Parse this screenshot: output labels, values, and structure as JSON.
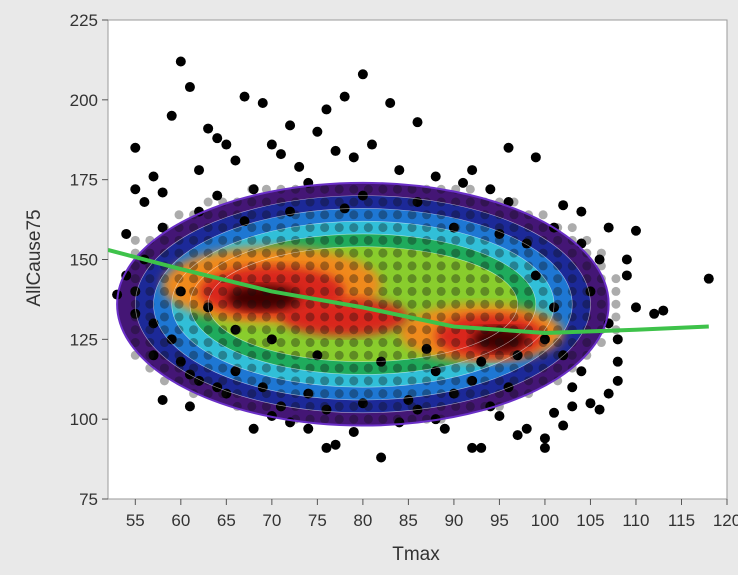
{
  "chart_data": {
    "type": "scatter",
    "title": "",
    "xlabel": "Tmax",
    "ylabel": "AllCause75",
    "xlim": [
      52,
      120
    ],
    "ylim": [
      75,
      225
    ],
    "x_ticks": [
      55,
      60,
      65,
      70,
      75,
      80,
      85,
      90,
      95,
      100,
      105,
      110,
      115,
      120
    ],
    "y_ticks": [
      75,
      100,
      125,
      150,
      175,
      200,
      225
    ],
    "grid": false,
    "legend": "none",
    "point_color": "#000000",
    "background_color": "#ffffff",
    "density_contours": {
      "description": "kernel density contour bands",
      "colors": [
        "#3a0a6e",
        "#1a2a9a",
        "#1f7bd6",
        "#33c3d8",
        "#1faa55",
        "#8fcf2a",
        "#e6d21f",
        "#f08a1a",
        "#d9261c",
        "#400000"
      ]
    },
    "fit_line": {
      "color": "#3ec24a",
      "x": [
        52,
        60,
        70,
        80,
        90,
        100,
        110,
        118
      ],
      "y": [
        153,
        147,
        140,
        135,
        129,
        127,
        128,
        129
      ]
    },
    "points": [
      [
        60,
        212
      ],
      [
        61,
        204
      ],
      [
        67,
        201
      ],
      [
        69,
        199
      ],
      [
        80,
        208
      ],
      [
        78,
        201
      ],
      [
        76,
        197
      ],
      [
        83,
        199
      ],
      [
        59,
        195
      ],
      [
        72,
        192
      ],
      [
        86,
        193
      ],
      [
        75,
        190
      ],
      [
        63,
        191
      ],
      [
        65,
        186
      ],
      [
        99,
        182
      ],
      [
        55,
        185
      ],
      [
        54,
        158
      ],
      [
        53,
        139
      ],
      [
        55,
        140
      ],
      [
        118,
        144
      ],
      [
        110,
        159
      ],
      [
        109,
        150
      ],
      [
        112,
        133
      ],
      [
        113,
        134
      ],
      [
        104,
        165
      ],
      [
        102,
        167
      ],
      [
        82,
        88
      ],
      [
        76,
        91
      ],
      [
        77,
        92
      ],
      [
        92,
        91
      ],
      [
        93,
        91
      ],
      [
        100,
        91
      ],
      [
        100,
        94
      ],
      [
        98,
        97
      ],
      [
        102,
        98
      ],
      [
        105,
        105
      ],
      [
        106,
        103
      ],
      [
        103,
        104
      ],
      [
        108,
        118
      ],
      [
        58,
        106
      ],
      [
        61,
        104
      ],
      [
        65,
        108
      ],
      [
        68,
        97
      ],
      [
        72,
        99
      ],
      [
        74,
        97
      ],
      [
        70,
        101
      ],
      [
        84,
        99
      ],
      [
        88,
        100
      ],
      [
        95,
        101
      ],
      [
        97,
        95
      ],
      [
        89,
        97
      ],
      [
        79,
        96
      ],
      [
        57,
        176
      ],
      [
        62,
        178
      ],
      [
        66,
        181
      ],
      [
        71,
        183
      ],
      [
        73,
        179
      ],
      [
        79,
        182
      ],
      [
        84,
        178
      ],
      [
        88,
        176
      ],
      [
        91,
        174
      ],
      [
        94,
        172
      ],
      [
        96,
        168
      ],
      [
        101,
        160
      ],
      [
        57,
        130
      ],
      [
        56,
        150
      ],
      [
        58,
        160
      ],
      [
        59,
        125
      ],
      [
        60,
        118
      ],
      [
        62,
        112
      ],
      [
        66,
        115
      ],
      [
        69,
        110
      ],
      [
        74,
        108
      ],
      [
        80,
        105
      ],
      [
        85,
        106
      ],
      [
        90,
        108
      ],
      [
        105,
        140
      ],
      [
        107,
        130
      ],
      [
        108,
        125
      ],
      [
        106,
        150
      ],
      [
        104,
        155
      ],
      [
        102,
        120
      ],
      [
        104,
        115
      ],
      [
        103,
        110
      ],
      [
        96,
        110
      ],
      [
        92,
        112
      ],
      [
        88,
        115
      ],
      [
        64,
        170
      ],
      [
        68,
        172
      ],
      [
        74,
        174
      ],
      [
        80,
        170
      ],
      [
        86,
        168
      ],
      [
        90,
        160
      ],
      [
        95,
        158
      ],
      [
        98,
        155
      ],
      [
        62,
        165
      ],
      [
        67,
        162
      ],
      [
        72,
        165
      ],
      [
        78,
        166
      ],
      [
        60,
        140
      ],
      [
        63,
        135
      ],
      [
        66,
        128
      ],
      [
        70,
        125
      ],
      [
        75,
        120
      ],
      [
        82,
        118
      ],
      [
        87,
        122
      ],
      [
        93,
        118
      ],
      [
        97,
        120
      ],
      [
        100,
        125
      ],
      [
        101,
        135
      ],
      [
        99,
        145
      ],
      [
        64,
        188
      ],
      [
        70,
        186
      ],
      [
        81,
        186
      ],
      [
        92,
        178
      ],
      [
        96,
        185
      ],
      [
        77,
        184
      ],
      [
        58,
        171
      ],
      [
        56,
        168
      ],
      [
        55,
        172
      ],
      [
        54,
        145
      ],
      [
        55,
        133
      ],
      [
        57,
        120
      ],
      [
        107,
        160
      ],
      [
        109,
        145
      ],
      [
        110,
        135
      ],
      [
        108,
        112
      ],
      [
        107,
        108
      ],
      [
        101,
        102
      ],
      [
        94,
        104
      ],
      [
        86,
        103
      ],
      [
        76,
        103
      ],
      [
        71,
        104
      ],
      [
        64,
        110
      ],
      [
        61,
        114
      ]
    ]
  }
}
